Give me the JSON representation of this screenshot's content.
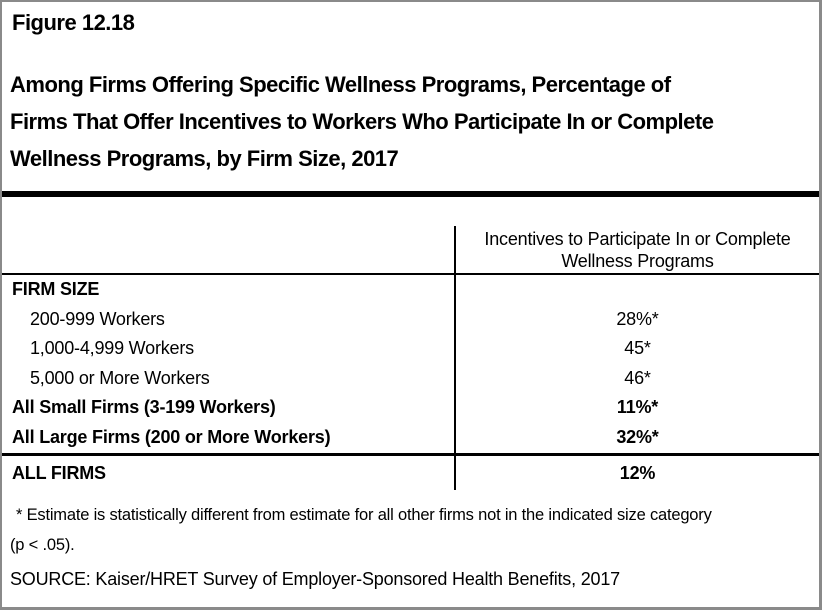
{
  "figure": {
    "label": "Figure 12.18",
    "title_lines": [
      "Among Firms Offering Specific Wellness Programs, Percentage of",
      "Firms That Offer Incentives to Workers Who Participate In or Complete",
      "Wellness Programs, by Firm Size, 2017"
    ]
  },
  "table": {
    "column_header_lines": [
      "Incentives to Participate In or Complete",
      "Wellness Programs"
    ],
    "section_header": "FIRM SIZE"
  },
  "chart_data": {
    "type": "table",
    "title": "Among Firms Offering Specific Wellness Programs, Percentage of Firms That Offer Incentives to Workers Who Participate In or Complete Wellness Programs, by Firm Size, 2017",
    "columns": [
      "FIRM SIZE",
      "Incentives to Participate In or Complete Wellness Programs"
    ],
    "rows": [
      [
        "200-999 Workers",
        "28%*"
      ],
      [
        "1,000-4,999 Workers",
        "45*"
      ],
      [
        "5,000 or More Workers",
        "46*"
      ],
      [
        "All Small Firms (3-199 Workers)",
        "11%*"
      ],
      [
        "All Large Firms (200 or More Workers)",
        "32%*"
      ],
      [
        "ALL FIRMS",
        "12%"
      ]
    ]
  },
  "notes": {
    "footnote_lines": [
      "* Estimate is statistically different from estimate for all other firms not in the indicated size category",
      "(p < .05)."
    ],
    "source": "SOURCE: Kaiser/HRET Survey of Employer-Sponsored Health Benefits, 2017"
  }
}
